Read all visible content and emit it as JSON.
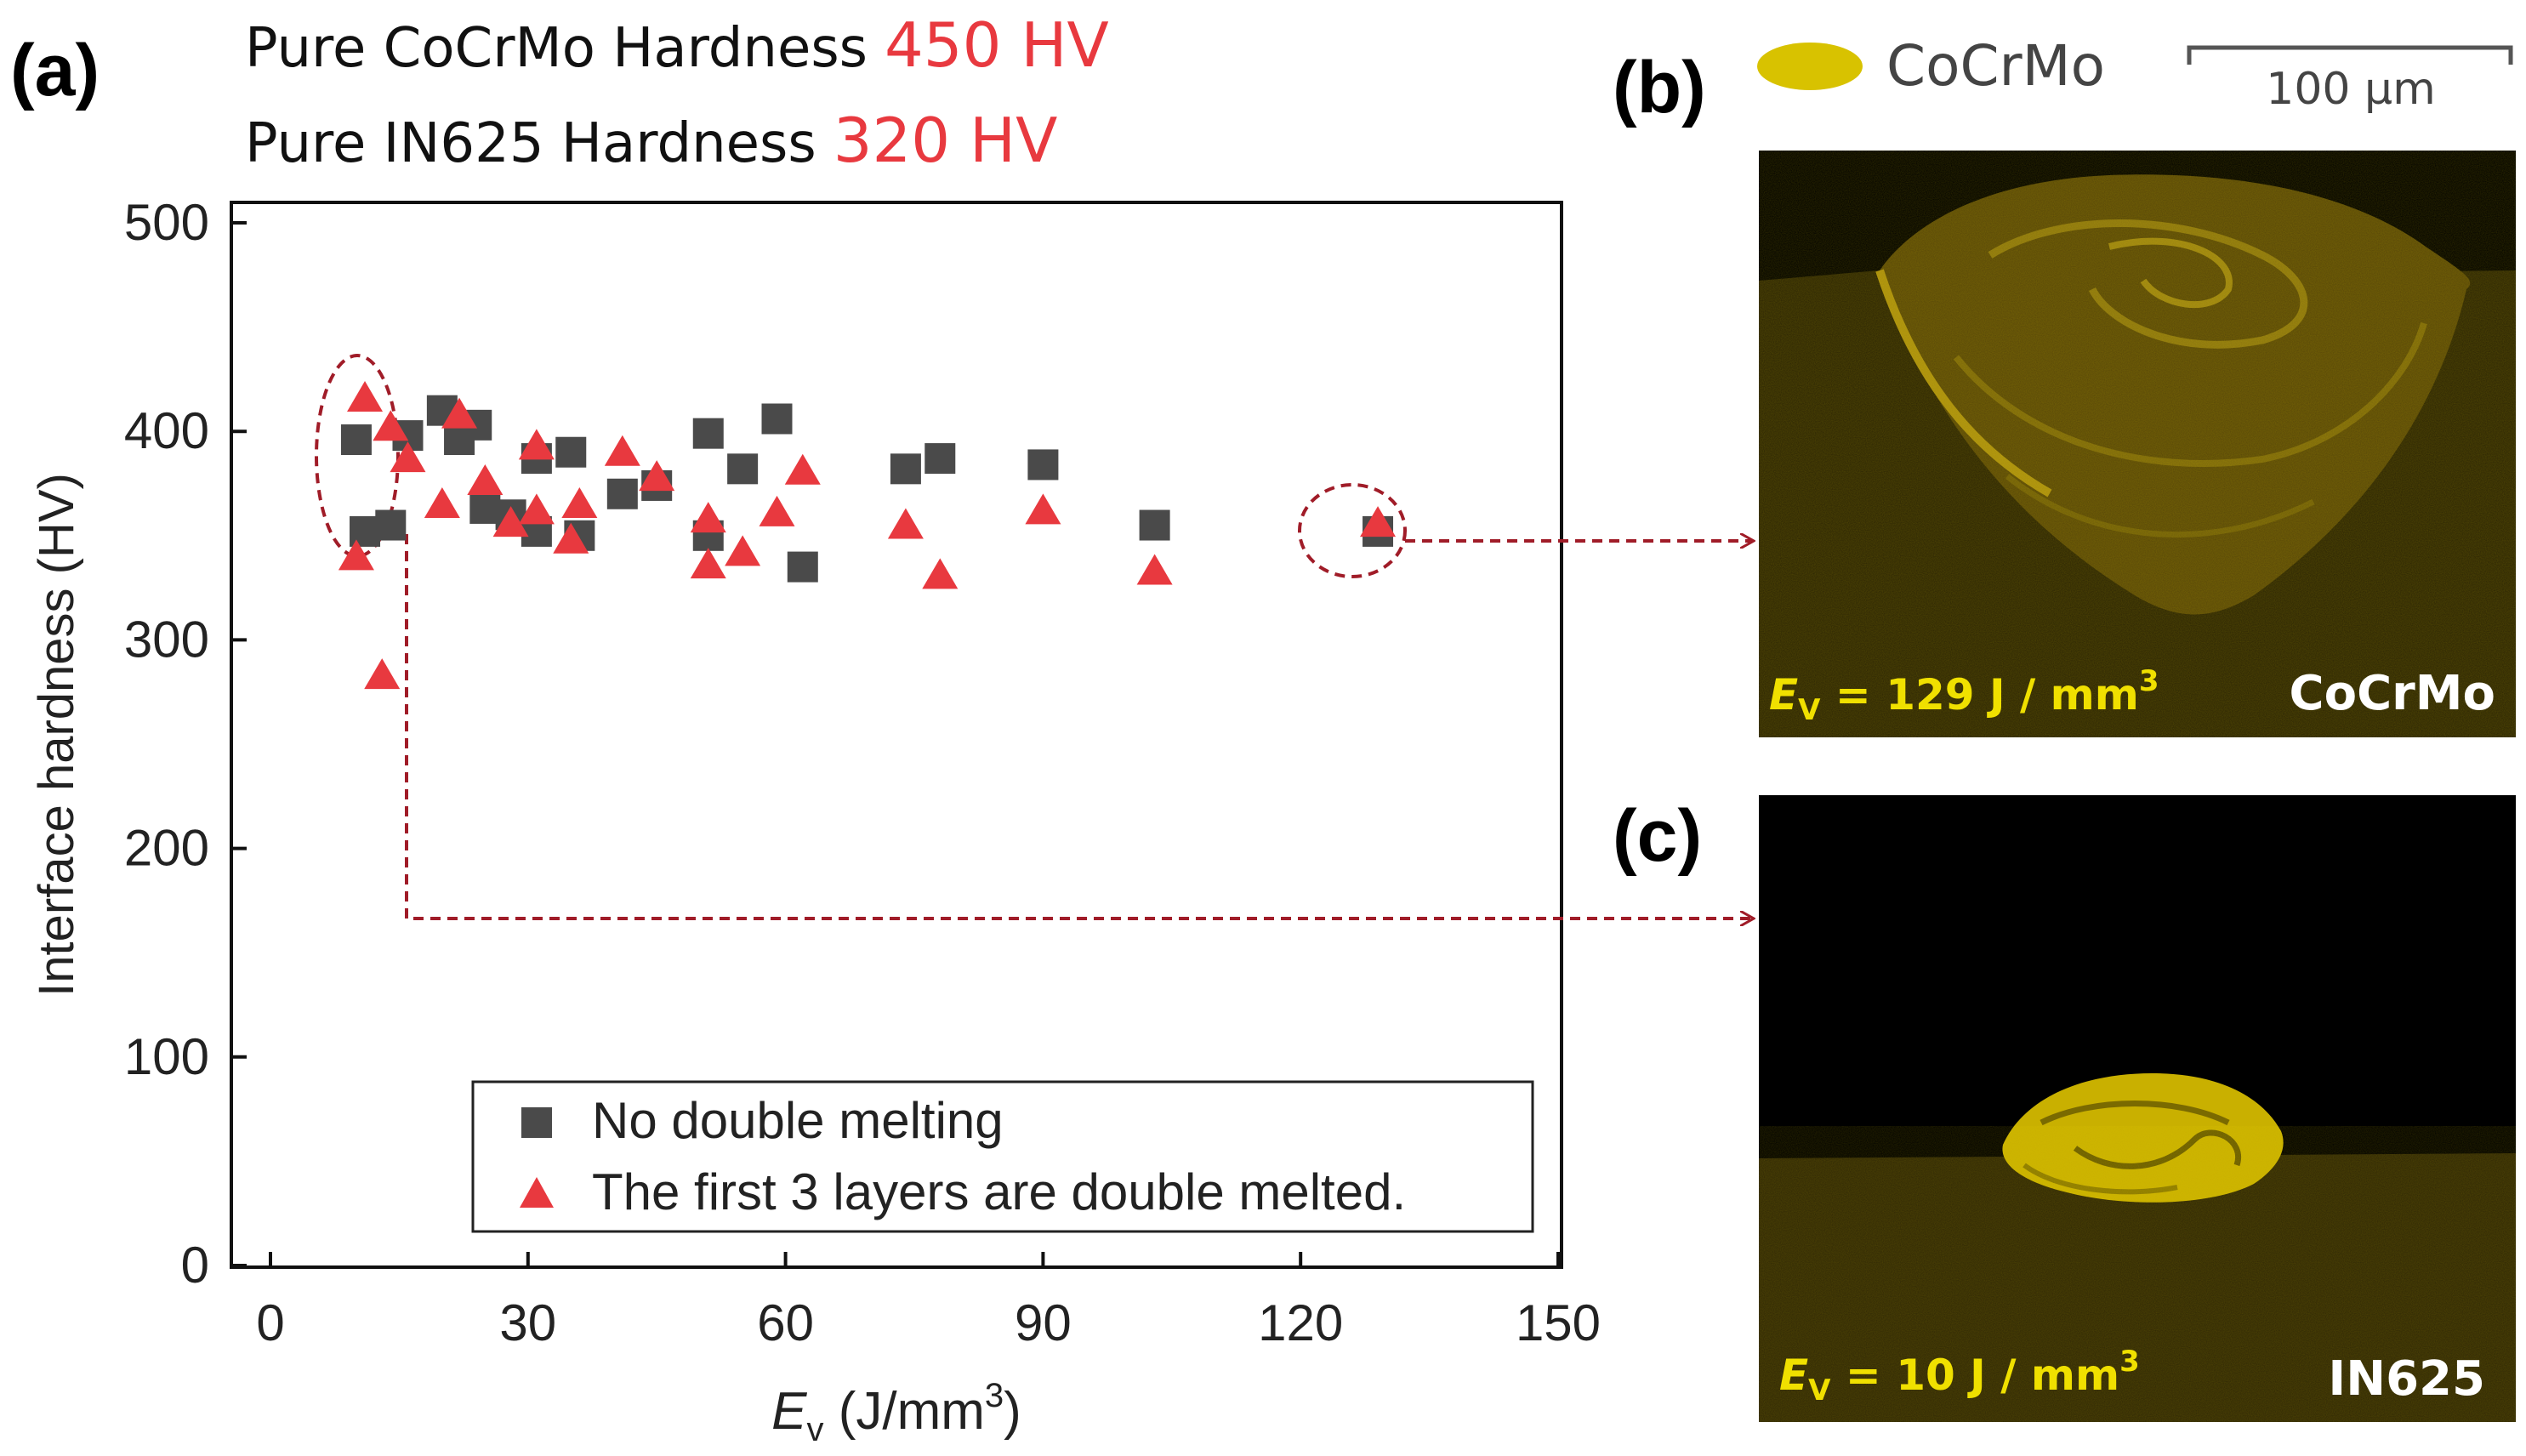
{
  "panels": {
    "a": "(a)",
    "b": "(b)",
    "c": "(c)"
  },
  "header": {
    "line1_label": "Pure CoCrMo Hardness",
    "line1_value": "450 HV",
    "line2_label": "Pure IN625 Hardness",
    "line2_value": "320 HV",
    "value_color": "#e8393f"
  },
  "colors": {
    "square": "#4a4a4a",
    "triangle": "#e8393f",
    "annotation": "#a01c28",
    "map_yellow": "#d8c200",
    "map_bg": "#2e2606"
  },
  "chart_data": {
    "type": "scatter",
    "xlim": [
      0,
      150
    ],
    "ylim": [
      0,
      500
    ],
    "xticks": [
      "0",
      "30",
      "60",
      "90",
      "120",
      "150"
    ],
    "yticks": [
      "0",
      "100",
      "200",
      "300",
      "400",
      "500"
    ],
    "xlabel_italic": "E",
    "xlabel_sub": "v",
    "xlabel_unit": " (J/mm",
    "xlabel_sup": "3",
    "xlabel_close": ")",
    "ylabel": "Interface hardness (HV)",
    "legend_position": "bottom-right",
    "series": [
      {
        "name": "No double melting",
        "marker": "square",
        "points": [
          [
            10,
            396
          ],
          [
            11,
            352
          ],
          [
            14,
            355
          ],
          [
            16,
            398
          ],
          [
            20,
            410
          ],
          [
            22,
            396
          ],
          [
            24,
            403
          ],
          [
            25,
            363
          ],
          [
            28,
            360
          ],
          [
            31,
            387
          ],
          [
            31,
            352
          ],
          [
            35,
            390
          ],
          [
            36,
            350
          ],
          [
            41,
            370
          ],
          [
            45,
            374
          ],
          [
            51,
            399
          ],
          [
            51,
            350
          ],
          [
            55,
            382
          ],
          [
            59,
            406
          ],
          [
            62,
            335
          ],
          [
            74,
            382
          ],
          [
            78,
            387
          ],
          [
            90,
            384
          ],
          [
            103,
            355
          ],
          [
            129,
            352
          ]
        ]
      },
      {
        "name": "The first 3 layers are double melted.",
        "marker": "triangle",
        "points": [
          [
            10,
            340
          ],
          [
            11,
            416
          ],
          [
            13,
            283
          ],
          [
            14,
            402
          ],
          [
            16,
            387
          ],
          [
            20,
            365
          ],
          [
            22,
            408
          ],
          [
            25,
            376
          ],
          [
            28,
            356
          ],
          [
            31,
            393
          ],
          [
            31,
            362
          ],
          [
            35,
            348
          ],
          [
            36,
            365
          ],
          [
            41,
            390
          ],
          [
            45,
            378
          ],
          [
            51,
            358
          ],
          [
            51,
            336
          ],
          [
            55,
            342
          ],
          [
            59,
            361
          ],
          [
            62,
            381
          ],
          [
            74,
            355
          ],
          [
            78,
            331
          ],
          [
            90,
            362
          ],
          [
            103,
            333
          ],
          [
            129,
            356
          ]
        ]
      }
    ]
  },
  "maps": {
    "legend_label": "CoCrMo",
    "scale_bar_label": "100 μm",
    "b": {
      "ev_italic": "E",
      "ev_sub": "V",
      "ev_rest": " = 129 J / mm",
      "ev_sup": "3",
      "material": "CoCrMo"
    },
    "c": {
      "ev_italic": "E",
      "ev_sub": "V",
      "ev_rest": " = 10 J / mm",
      "ev_sup": "3",
      "material": "IN625"
    }
  }
}
